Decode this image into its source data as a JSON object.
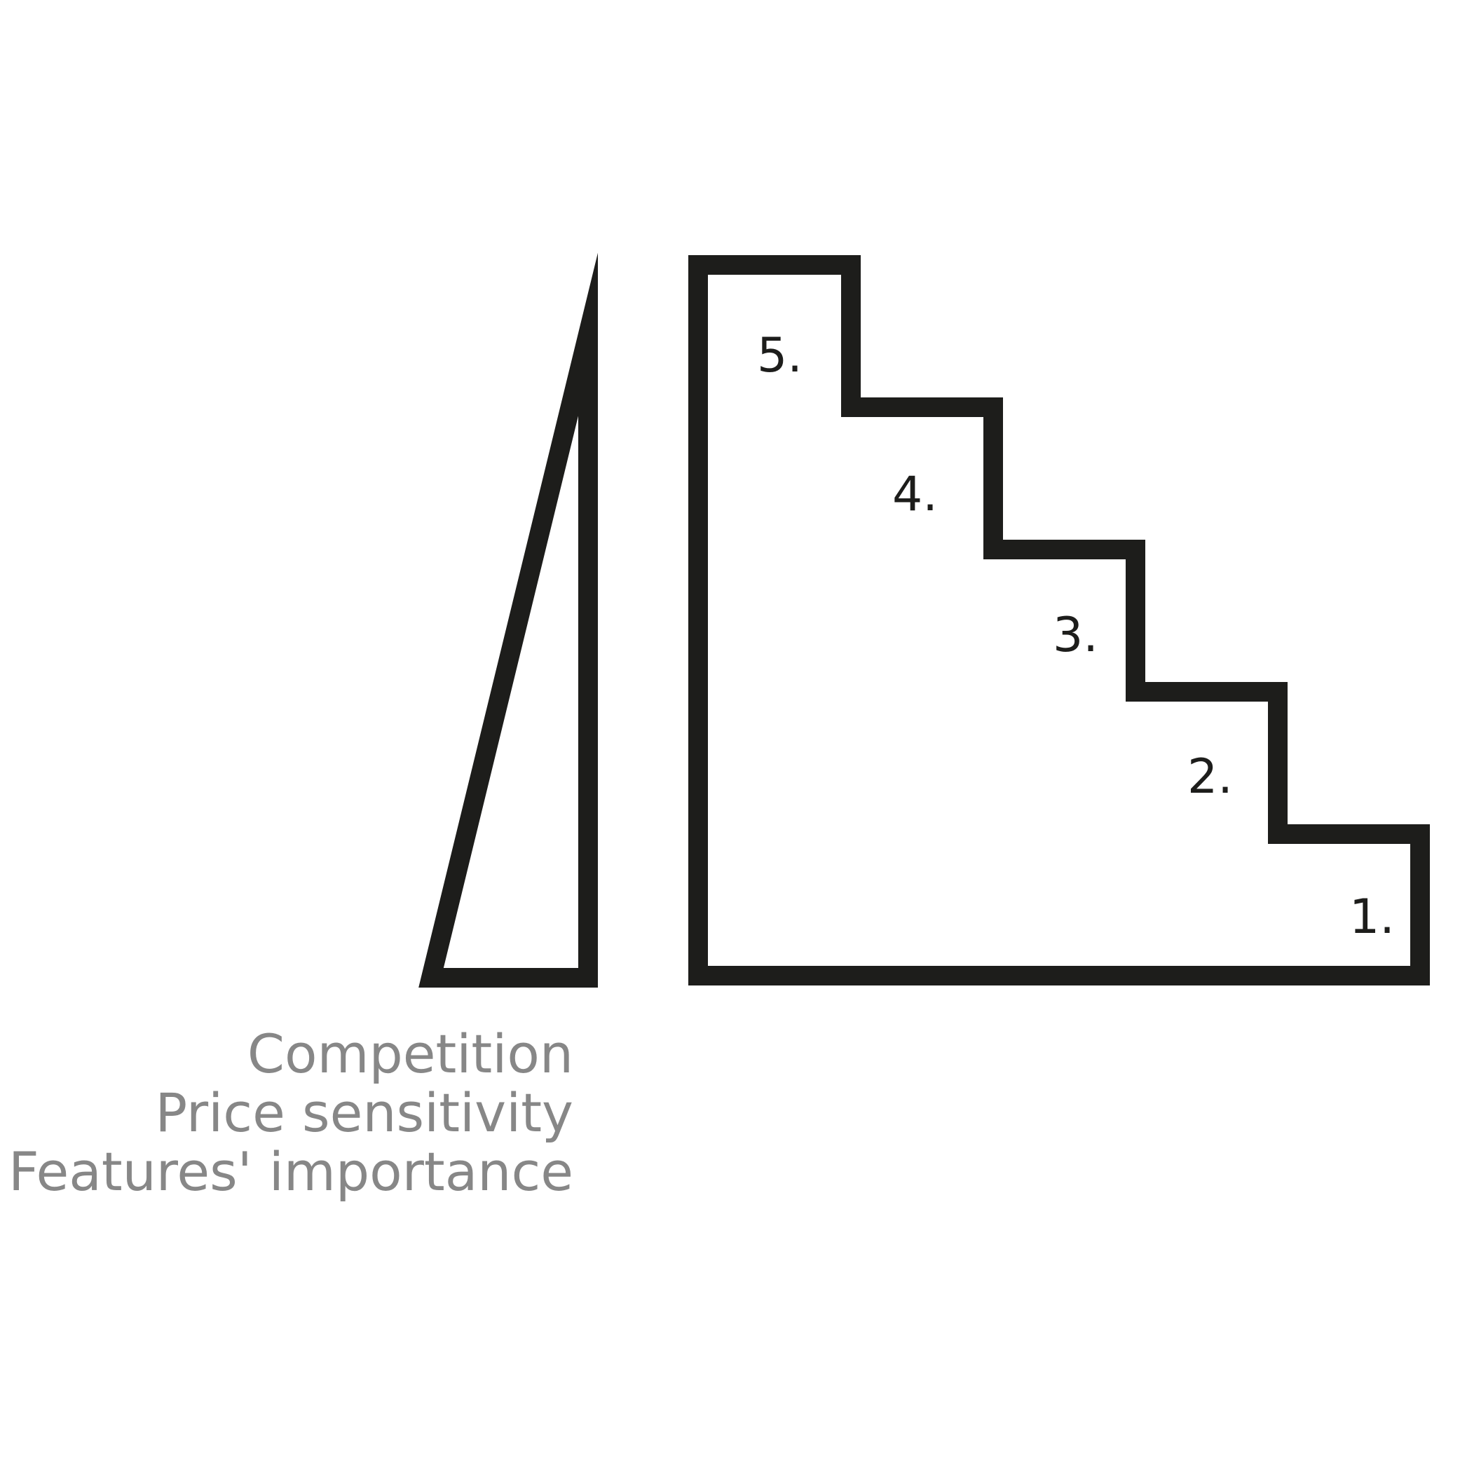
{
  "diagram": {
    "steps": [
      {
        "label": "1."
      },
      {
        "label": "2."
      },
      {
        "label": "3."
      },
      {
        "label": "4."
      },
      {
        "label": "5."
      }
    ],
    "legend": [
      "Competition",
      "Price sensitivity",
      "Features' importance"
    ],
    "colors": {
      "outline": "#1d1d1b",
      "legend_text": "#878787",
      "background": "#ffffff"
    }
  }
}
